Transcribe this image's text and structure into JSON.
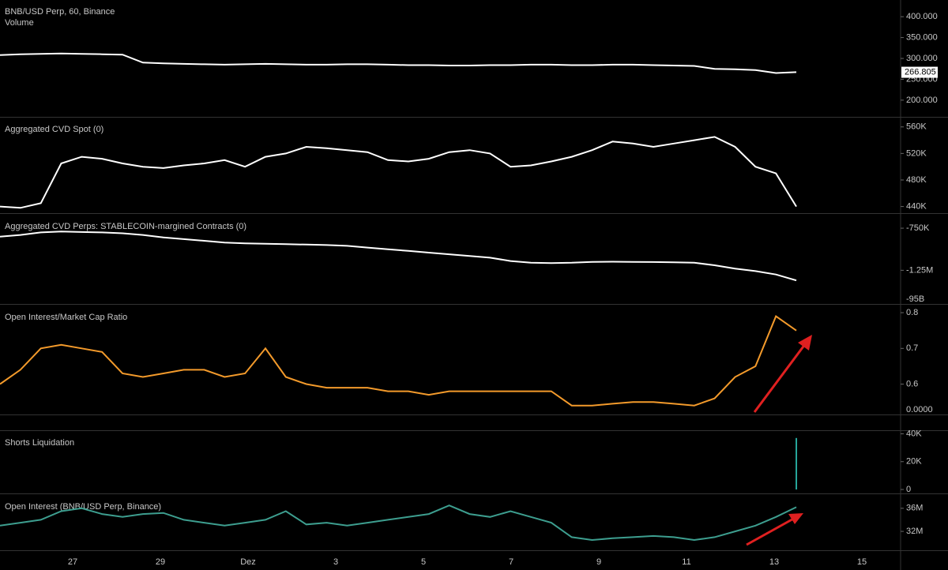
{
  "chart_data": [
    {
      "type": "line",
      "title": "BNB/USD Perp, 60, Binance",
      "subtitle": "Volume",
      "color": "#ffffff",
      "values": [
        308,
        310,
        311,
        312,
        311,
        310,
        309,
        290,
        288,
        287,
        286,
        285,
        286,
        287,
        286,
        285,
        285,
        286,
        286,
        285,
        284,
        284,
        283,
        283,
        284,
        284,
        285,
        285,
        284,
        284,
        285,
        285,
        284,
        283,
        282,
        275,
        274,
        272,
        265,
        267
      ],
      "last_price": 266.805,
      "ylim": [
        160,
        440
      ],
      "yticks": [
        {
          "value": 400,
          "label": "400.000"
        },
        {
          "value": 350,
          "label": "350.000"
        },
        {
          "value": 300,
          "label": "300.000"
        },
        {
          "value": 250,
          "label": "250.000"
        },
        {
          "value": 200,
          "label": "200.000"
        }
      ]
    },
    {
      "type": "line",
      "title": "Aggregated CVD Spot (0)",
      "color": "#ffffff",
      "values": [
        440000,
        438000,
        445000,
        505000,
        515000,
        512000,
        505000,
        500000,
        498000,
        502000,
        505000,
        510000,
        500000,
        515000,
        520000,
        530000,
        528000,
        525000,
        522000,
        510000,
        508000,
        512000,
        522000,
        525000,
        520000,
        500000,
        502000,
        508000,
        515000,
        525000,
        538000,
        535000,
        530000,
        535000,
        540000,
        545000,
        530000,
        500000,
        490000,
        440000
      ],
      "ylim": [
        430000,
        574000
      ],
      "yticks": [
        {
          "value": 560000,
          "label": "560K"
        },
        {
          "value": 520000,
          "label": "520K"
        },
        {
          "value": 480000,
          "label": "480K"
        },
        {
          "value": 440000,
          "label": "440K"
        }
      ]
    },
    {
      "type": "line",
      "title": "Aggregated CVD Perps: STABLECOIN-margined Contracts (0)",
      "color": "#ffffff",
      "values": [
        -850000,
        -830000,
        -800000,
        -790000,
        -795000,
        -800000,
        -810000,
        -830000,
        -860000,
        -880000,
        -900000,
        -920000,
        -930000,
        -935000,
        -940000,
        -945000,
        -950000,
        -960000,
        -980000,
        -1000000,
        -1020000,
        -1040000,
        -1060000,
        -1080000,
        -1100000,
        -1140000,
        -1160000,
        -1165000,
        -1160000,
        -1150000,
        -1148000,
        -1150000,
        -1152000,
        -1155000,
        -1160000,
        -1190000,
        -1230000,
        -1260000,
        -1300000,
        -1370000
      ],
      "ylim": [
        -1650000,
        -590000
      ],
      "yticks": [
        {
          "value": -750000,
          "label": "-750K"
        },
        {
          "value": -1250000,
          "label": "-1.25M"
        }
      ],
      "extra_axis_label": "-95B"
    },
    {
      "type": "line",
      "title": "Open Interest/Market Cap Ratio",
      "color": "#f39a2b",
      "values": [
        0.6,
        0.64,
        0.7,
        0.71,
        0.7,
        0.69,
        0.63,
        0.62,
        0.63,
        0.64,
        0.64,
        0.62,
        0.63,
        0.7,
        0.62,
        0.6,
        0.59,
        0.59,
        0.59,
        0.58,
        0.58,
        0.57,
        0.58,
        0.58,
        0.58,
        0.58,
        0.58,
        0.58,
        0.54,
        0.54,
        0.545,
        0.55,
        0.55,
        0.545,
        0.54,
        0.56,
        0.62,
        0.65,
        0.79,
        0.75
      ],
      "ylim": [
        0.515,
        0.82
      ],
      "yticks": [
        0.8,
        0.7,
        0.6
      ],
      "extra_axis_label": "0.0000"
    },
    {
      "type": "bar",
      "title": "Shorts Liquidation",
      "color": "#26a69a",
      "values": [
        0,
        0,
        500,
        3000,
        0,
        0,
        0,
        500,
        0,
        0,
        0,
        0,
        0,
        0,
        0,
        0,
        1500,
        0,
        0,
        0,
        0,
        0,
        0,
        0,
        0,
        0,
        0,
        0,
        500,
        0,
        0,
        0,
        0,
        0,
        0,
        0,
        0,
        0,
        500,
        37000
      ],
      "ylim": [
        0,
        42000
      ],
      "yticks": [
        {
          "value": 40000,
          "label": "40K"
        },
        {
          "value": 20000,
          "label": "20K"
        },
        0
      ]
    },
    {
      "type": "line",
      "title": "Open Interest (BNB/USD Perp, Binance)",
      "color": "#3d9e8f",
      "values": [
        33000000,
        33500000,
        34000000,
        35500000,
        36000000,
        35000000,
        34500000,
        35000000,
        35200000,
        34000000,
        33500000,
        33000000,
        33500000,
        34000000,
        35500000,
        33200000,
        33500000,
        33000000,
        33500000,
        34000000,
        34500000,
        35000000,
        36500000,
        35000000,
        34500000,
        35500000,
        34500000,
        33500000,
        31000000,
        30500000,
        30800000,
        31000000,
        31200000,
        31000000,
        30500000,
        31000000,
        32000000,
        33000000,
        34500000,
        36200000
      ],
      "ylim": [
        29000000,
        38300000
      ],
      "yticks": [
        {
          "value": 36000000,
          "label": "36M"
        },
        {
          "value": 32000000,
          "label": "32M"
        }
      ],
      "x_axis_labels": [
        "27",
        "29",
        "Dez",
        "3",
        "5",
        "7",
        "9",
        "11",
        "13",
        "15"
      ]
    }
  ]
}
